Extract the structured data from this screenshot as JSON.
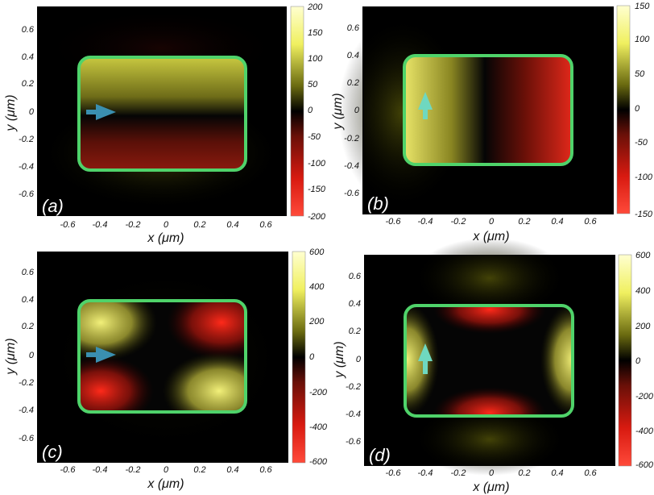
{
  "colors": {
    "background": "#000000",
    "boundary": "#4fd36a",
    "arrow": "#3a8fb0",
    "arrow_vertical": "#6fd8c0",
    "positive": "#f5f07a",
    "negative": "#ff2a1a"
  },
  "x_ticks": [
    "-0.6",
    "-0.4",
    "-0.2",
    "0",
    "0.2",
    "0.4",
    "0.6"
  ],
  "y_ticks": [
    "0.6",
    "0.4",
    "0.2",
    "0",
    "-0.2",
    "-0.4",
    "-0.6"
  ],
  "x_label": "x (μm)",
  "y_label": "y (μm)",
  "panels": [
    {
      "label": "(a)",
      "colorbar_ticks": [
        "200",
        "150",
        "100",
        "50",
        "0",
        "-50",
        "-100",
        "-150",
        "-200"
      ],
      "arrow": "right"
    },
    {
      "label": "(b)",
      "colorbar_ticks": [
        "150",
        "100",
        "50",
        "0",
        "-50",
        "-100",
        "-150"
      ],
      "arrow": "up"
    },
    {
      "label": "(c)",
      "colorbar_ticks": [
        "600",
        "400",
        "200",
        "0",
        "-200",
        "-400",
        "-600"
      ],
      "arrow": "right"
    },
    {
      "label": "(d)",
      "colorbar_ticks": [
        "600",
        "400",
        "200",
        "0",
        "-200",
        "-400",
        "-600"
      ],
      "arrow": "up"
    }
  ]
}
